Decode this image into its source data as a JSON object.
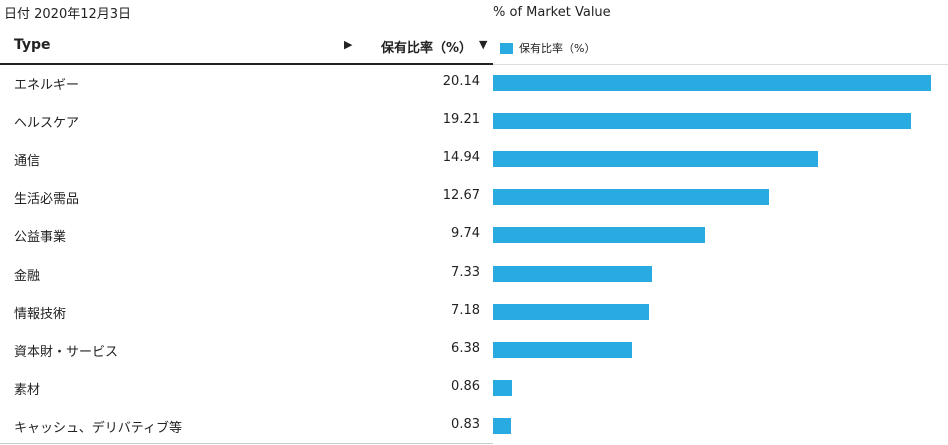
{
  "date_label": "日付 2020年12月3日",
  "header": {
    "type_label": "Type",
    "pct_label": "保有比率（%）",
    "arrow_right": "▶",
    "arrow_down": "▼"
  },
  "chart_data": {
    "type": "bar",
    "orientation": "horizontal",
    "title": "% of Market Value",
    "legend": {
      "label": "保有比率（%）",
      "color": "#29abe2",
      "placement": "top-left"
    },
    "categories": [
      "エネルギー",
      "ヘルスケア",
      "通信",
      "生活必需品",
      "公益事業",
      "金融",
      "情報技術",
      "資本財・サービス",
      "素材",
      "キャッシュ、デリバティブ等"
    ],
    "value_labels": [
      "20.14",
      "19.21",
      "14.94",
      "12.67",
      "9.74",
      "7.33",
      "7.18",
      "6.38",
      "0.86",
      "0.83"
    ],
    "values": [
      20.14,
      19.21,
      14.94,
      12.67,
      9.74,
      7.33,
      7.18,
      6.38,
      0.86,
      0.83
    ],
    "xlim": [
      0,
      20.14
    ],
    "grid": false
  }
}
